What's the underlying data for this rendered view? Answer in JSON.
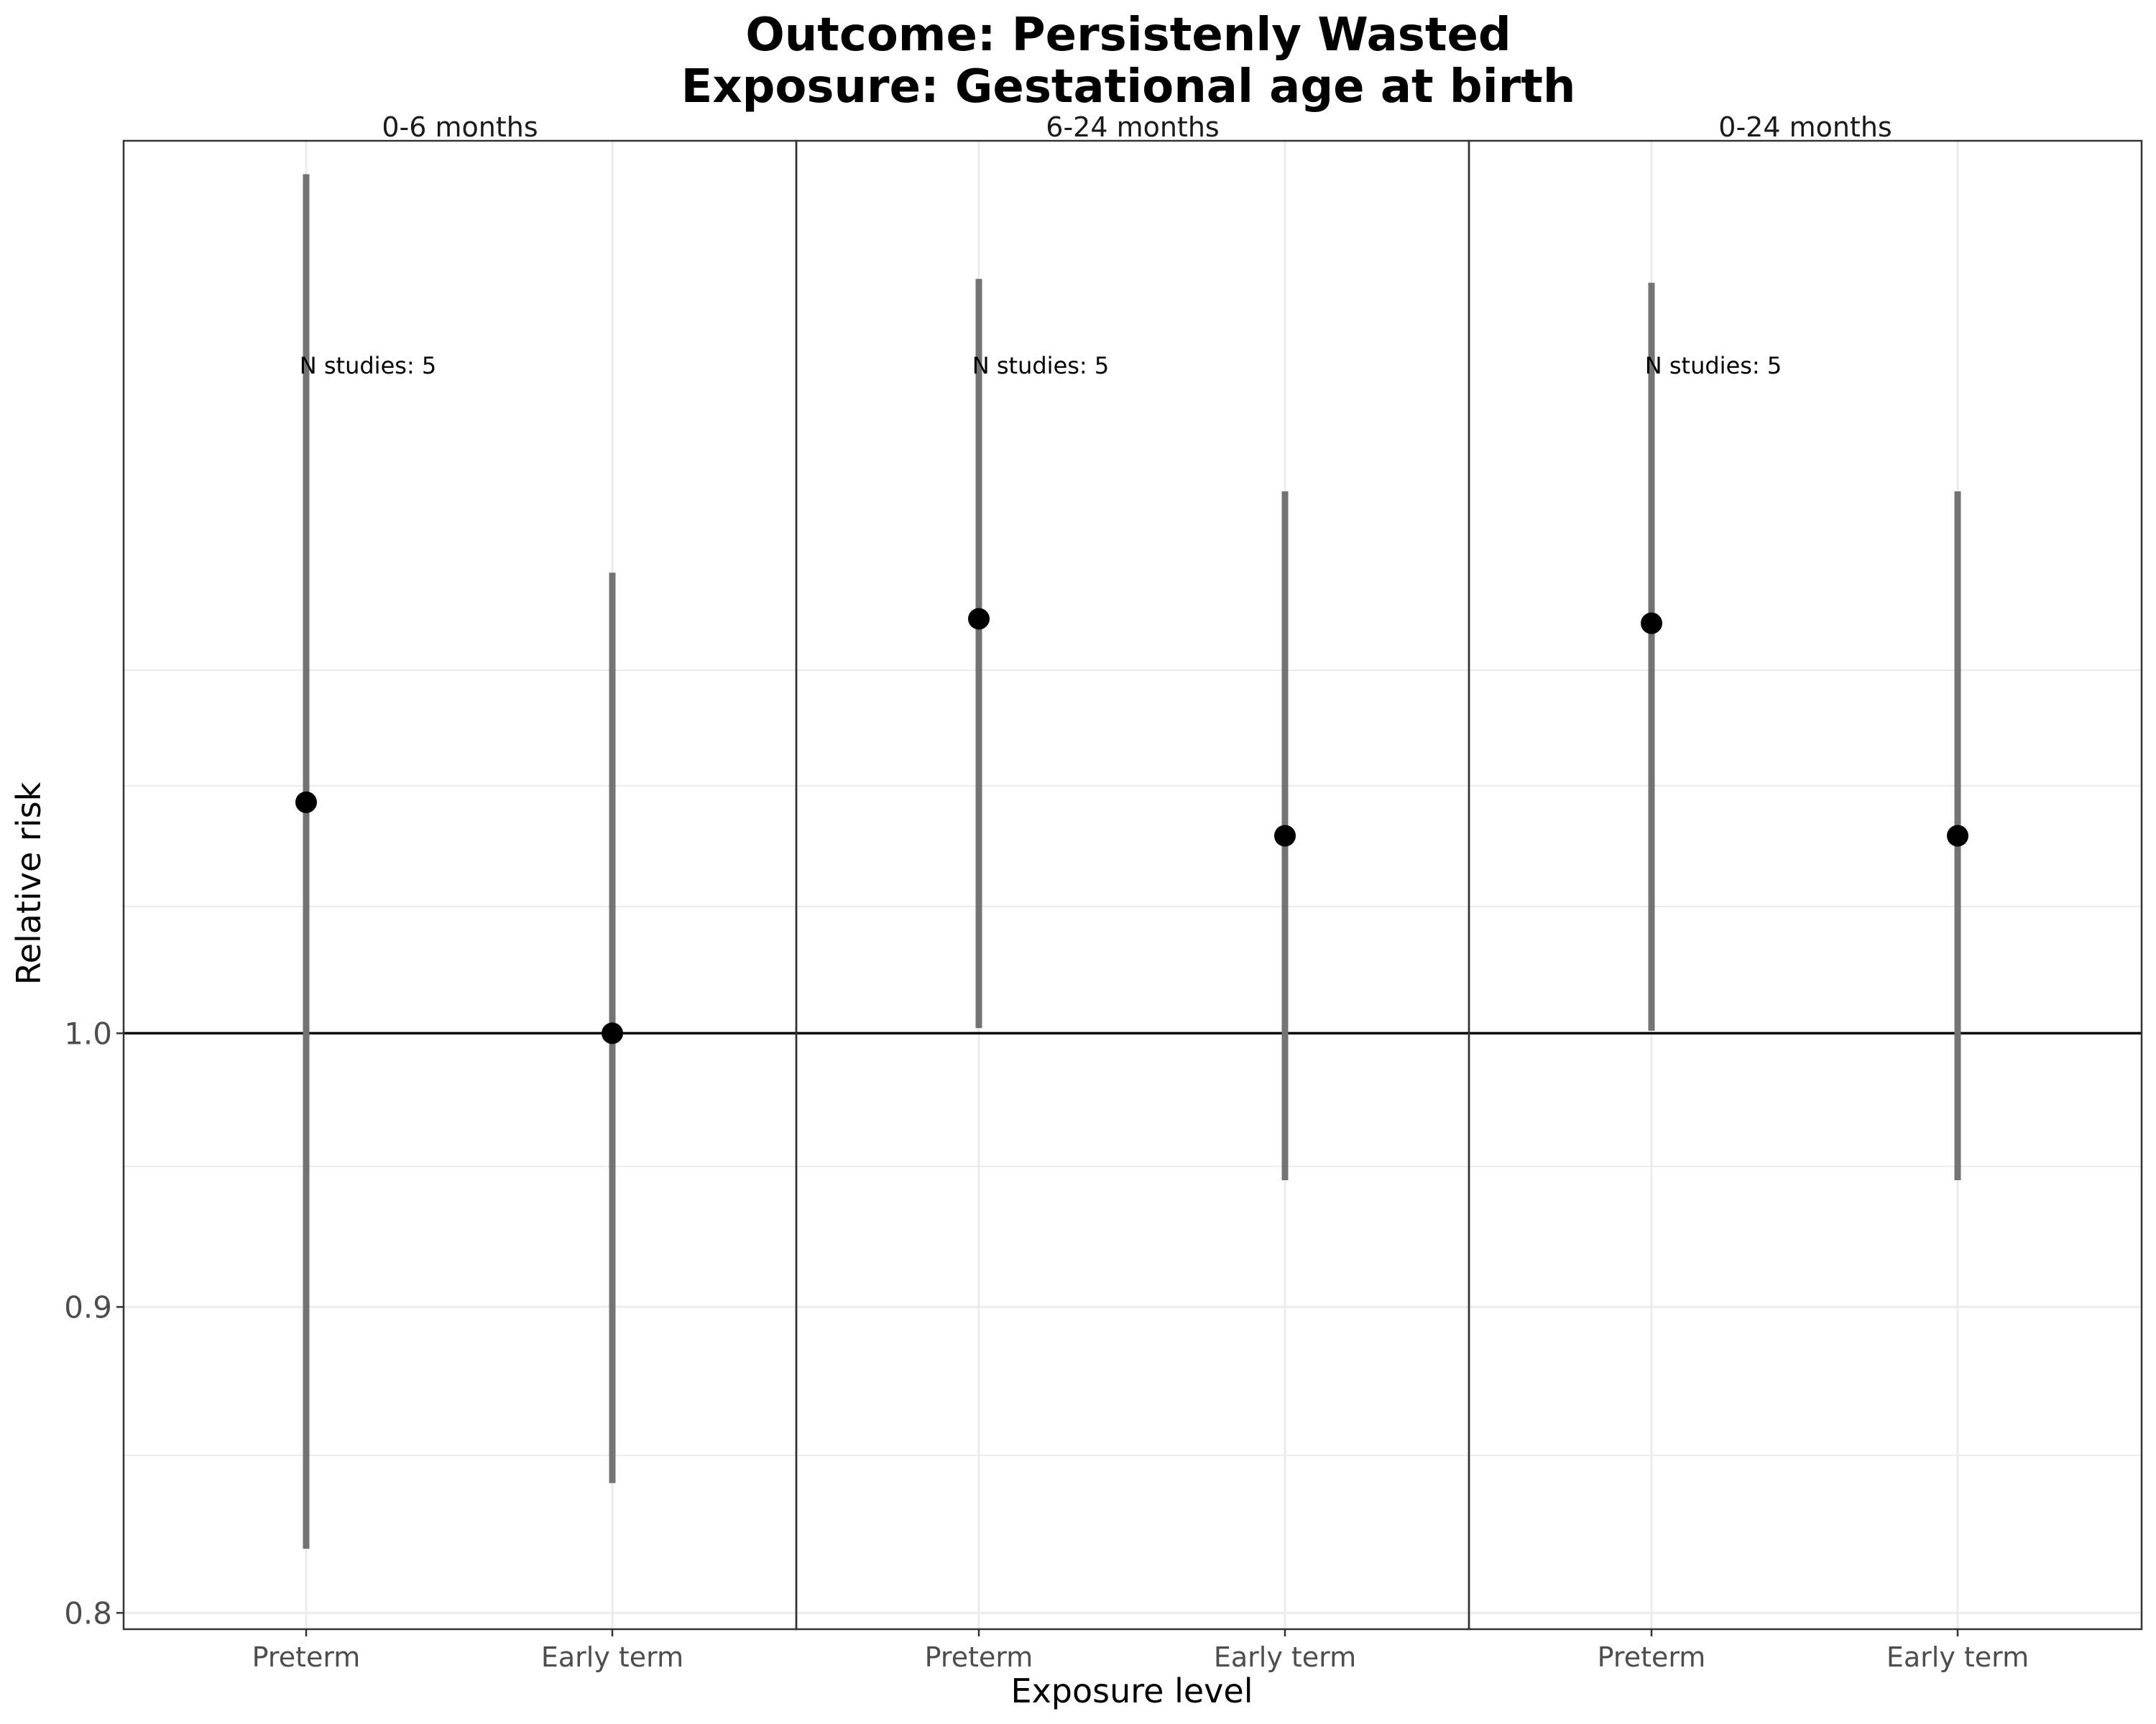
{
  "chart_data": {
    "type": "errorbar",
    "title": [
      "Outcome: Persistenly Wasted",
      "Exposure: Gestational age at birth"
    ],
    "xlabel": "Exposure level",
    "ylabel": "Relative risk",
    "ylim": [
      0.795,
      1.41
    ],
    "yticks": [
      "0.8",
      "0.9",
      "1.0"
    ],
    "y_scale": "log",
    "reference_line": 1.0,
    "grid": true,
    "categories": [
      "Preterm",
      "Early term"
    ],
    "panels": [
      {
        "label": "0-6 months",
        "annotation": "N studies: 5",
        "points": [
          {
            "category": "Preterm",
            "estimate": 1.093,
            "lower": 0.82,
            "upper": 1.392
          },
          {
            "category": "Early term",
            "estimate": 1.0,
            "lower": 0.841,
            "upper": 1.194
          }
        ]
      },
      {
        "label": "6-24 months",
        "annotation": "N studies: 5",
        "points": [
          {
            "category": "Preterm",
            "estimate": 1.173,
            "lower": 1.002,
            "upper": 1.337
          },
          {
            "category": "Early term",
            "estimate": 1.079,
            "lower": 0.945,
            "upper": 1.232
          }
        ]
      },
      {
        "label": "0-24 months",
        "annotation": "N studies: 5",
        "points": [
          {
            "category": "Preterm",
            "estimate": 1.171,
            "lower": 1.001,
            "upper": 1.335
          },
          {
            "category": "Early term",
            "estimate": 1.079,
            "lower": 0.945,
            "upper": 1.232
          }
        ]
      }
    ]
  }
}
